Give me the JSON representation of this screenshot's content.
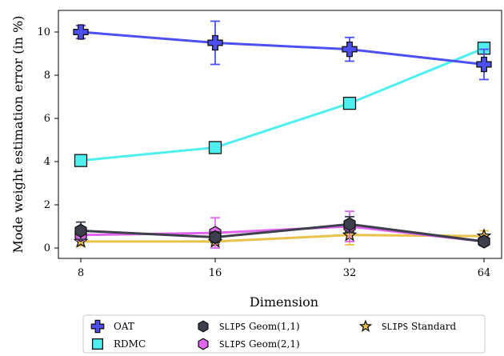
{
  "chart_data": {
    "type": "line",
    "xlabel": "Dimension",
    "ylabel": "Mode weight estimation error (in %)",
    "x": [
      8,
      16,
      32,
      64
    ],
    "x_ticks": [
      "8",
      "16",
      "32",
      "64"
    ],
    "x_scale": "log2",
    "ylim": [
      -0.4,
      11.0
    ],
    "y_ticks": [
      0,
      2,
      4,
      6,
      8,
      10
    ],
    "grid": false,
    "legend_position": "bottom-outside",
    "series": [
      {
        "name": "OAT",
        "prefix": "",
        "suffix": "",
        "color": "#4d4ff0",
        "marker": "cross",
        "values": [
          10.0,
          9.5,
          9.2,
          8.5
        ],
        "errors": [
          0.3,
          1.0,
          0.55,
          0.7
        ]
      },
      {
        "name": "RDMC",
        "prefix": "",
        "suffix": "",
        "color": "#4fefef",
        "marker": "square",
        "values": [
          4.05,
          4.65,
          6.7,
          9.25
        ],
        "errors": [
          0,
          0,
          0,
          0
        ]
      },
      {
        "name": "SLIPS Geom(1,1)",
        "prefix": "SLIPS",
        "suffix": " Geom(1,1)",
        "color": "#3e3f4c",
        "marker": "hexagon",
        "values": [
          0.8,
          0.5,
          1.1,
          0.3
        ],
        "errors": [
          0.4,
          0.25,
          0.35,
          0.15
        ]
      },
      {
        "name": "SLIPS Geom(2,1)",
        "prefix": "SLIPS",
        "suffix": " Geom(2,1)",
        "color": "#e066ef",
        "marker": "hexagon",
        "values": [
          0.6,
          0.7,
          1.0,
          0.3
        ],
        "errors": [
          0.25,
          0.7,
          0.7,
          0.2
        ]
      },
      {
        "name": "SLIPS Standard",
        "prefix": "SLIPS",
        "suffix": " Standard",
        "color": "#e8c24a",
        "marker": "star",
        "values": [
          0.3,
          0.3,
          0.6,
          0.55
        ],
        "errors": [
          0.2,
          0.15,
          0.45,
          0.25
        ]
      }
    ]
  }
}
